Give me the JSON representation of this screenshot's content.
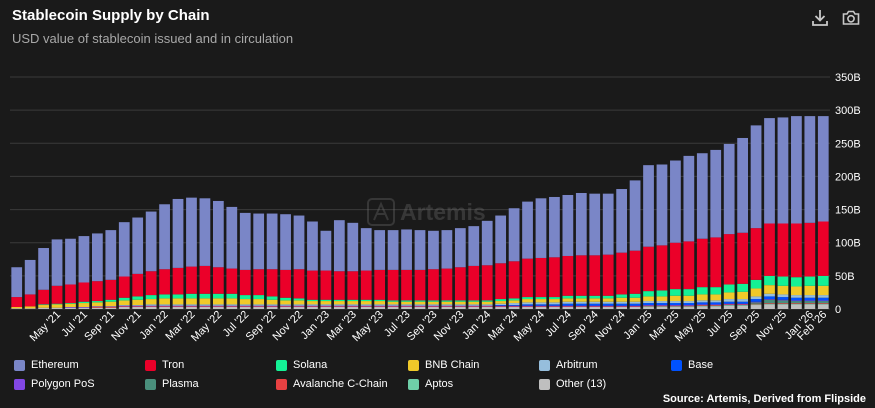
{
  "header": {
    "title": "Stablecoin Supply by Chain",
    "subtitle": "USD value of stablecoin issued and in circulation"
  },
  "toolbar": {
    "download_icon": "download-icon",
    "camera_icon": "camera-icon"
  },
  "source": "Source: Artemis, Derived from Flipside",
  "watermark": "Artemis",
  "colors": {
    "background": "#1a1a1a",
    "gridline": "#3a3a3a"
  },
  "chart_data": {
    "type": "bar",
    "stacked": true,
    "unit": "USD (billions)",
    "ylim": [
      0,
      350
    ],
    "yticks": [
      0,
      50,
      100,
      150,
      200,
      250,
      300,
      350
    ],
    "ytick_labels": [
      "0",
      "50B",
      "100B",
      "150B",
      "200B",
      "250B",
      "300B",
      "350B"
    ],
    "y_axis_position": "right",
    "grid": true,
    "legend_position": "bottom",
    "x_tick_labels": [
      "May '21",
      "Jul '21",
      "Sep '21",
      "Nov '21",
      "Jan '22",
      "Mar '22",
      "May '22",
      "Jul '22",
      "Sep '22",
      "Nov '22",
      "Jan '23",
      "Mar '23",
      "May '23",
      "Jul '23",
      "Sep '23",
      "Nov '23",
      "Jan '24",
      "Mar '24",
      "May '24",
      "Jul '24",
      "Sep '24",
      "Nov '24",
      "Jan '25",
      "Mar '25",
      "May '25",
      "Jul '25",
      "Sep '25",
      "Nov '25",
      "Jan '26",
      "Feb '26"
    ],
    "x_tick_indices": [
      3,
      5,
      7,
      9,
      11,
      13,
      15,
      17,
      19,
      21,
      23,
      25,
      27,
      29,
      31,
      33,
      35,
      37,
      39,
      41,
      43,
      45,
      47,
      49,
      51,
      53,
      55,
      57,
      59,
      60
    ],
    "categories": [
      "Feb '21",
      "Mar '21",
      "Apr '21",
      "May '21",
      "Jun '21",
      "Jul '21",
      "Aug '21",
      "Sep '21",
      "Oct '21",
      "Nov '21",
      "Dec '21",
      "Jan '22",
      "Feb '22",
      "Mar '22",
      "Apr '22",
      "May '22",
      "Jun '22",
      "Jul '22",
      "Aug '22",
      "Sep '22",
      "Oct '22",
      "Nov '22",
      "Dec '22",
      "Jan '23",
      "Feb '23",
      "Mar '23",
      "Apr '23",
      "May '23",
      "Jun '23",
      "Jul '23",
      "Aug '23",
      "Sep '23",
      "Oct '23",
      "Nov '23",
      "Dec '23",
      "Jan '24",
      "Feb '24",
      "Mar '24",
      "Apr '24",
      "May '24",
      "Jun '24",
      "Jul '24",
      "Aug '24",
      "Sep '24",
      "Oct '24",
      "Nov '24",
      "Dec '24",
      "Jan '25",
      "Feb '25",
      "Mar '25",
      "Apr '25",
      "May '25",
      "Jun '25",
      "Jul '25",
      "Aug '25",
      "Sep '25",
      "Oct '25",
      "Nov '25",
      "Dec '25",
      "Jan '26",
      "Feb '26"
    ],
    "series": [
      {
        "name": "Other (13)",
        "color": "#bfbfbf",
        "values": [
          1,
          1,
          2,
          2,
          2,
          2,
          2,
          2,
          3,
          3,
          3,
          3,
          3,
          3,
          3,
          3,
          3,
          3,
          3,
          3,
          3,
          3,
          3,
          3,
          3,
          3,
          3,
          3,
          3,
          3,
          3,
          3,
          3,
          3,
          3,
          3,
          3,
          3,
          3,
          3,
          3,
          3,
          3,
          3,
          3,
          3,
          3,
          3,
          3,
          3,
          3,
          4,
          4,
          5,
          5,
          6,
          7,
          7,
          7,
          7,
          7
        ]
      },
      {
        "name": "Aptos",
        "color": "#6fcfa8",
        "values": [
          0,
          0,
          0,
          0,
          0,
          0,
          0,
          0,
          0,
          0,
          0,
          0,
          0,
          0,
          0,
          0,
          0,
          0,
          0,
          0,
          0,
          0,
          0,
          0,
          0,
          0,
          0,
          0,
          0,
          0,
          0,
          0,
          0,
          0,
          0,
          0,
          0,
          0,
          0,
          0,
          0,
          0,
          0,
          0,
          0,
          0,
          0,
          1,
          1,
          1,
          1,
          1,
          1,
          1,
          1,
          1,
          1,
          1,
          1,
          1,
          1
        ]
      },
      {
        "name": "Avalanche C-Chain",
        "color": "#e84142",
        "values": [
          0,
          0,
          0,
          0,
          0,
          0,
          1,
          1,
          1,
          1,
          1,
          1,
          1,
          1,
          1,
          1,
          1,
          1,
          1,
          1,
          1,
          1,
          1,
          1,
          1,
          1,
          1,
          1,
          1,
          1,
          1,
          1,
          1,
          1,
          1,
          1,
          1,
          1,
          1,
          1,
          1,
          1,
          1,
          1,
          1,
          1,
          1,
          1,
          1,
          1,
          1,
          1,
          1,
          1,
          1,
          1,
          1,
          1,
          1,
          1,
          1
        ]
      },
      {
        "name": "Plasma",
        "color": "#4a8f7c",
        "values": [
          0,
          0,
          0,
          0,
          0,
          0,
          0,
          0,
          0,
          0,
          0,
          0,
          0,
          0,
          0,
          0,
          0,
          0,
          0,
          0,
          0,
          0,
          0,
          0,
          0,
          0,
          0,
          0,
          0,
          0,
          0,
          0,
          0,
          0,
          0,
          0,
          0,
          0,
          0,
          0,
          0,
          0,
          0,
          0,
          0,
          0,
          0,
          0,
          0,
          0,
          0,
          0,
          0,
          0,
          0,
          2,
          5,
          4,
          3,
          3,
          3
        ]
      },
      {
        "name": "Polygon PoS",
        "color": "#8247e5",
        "values": [
          0,
          0,
          0,
          0,
          1,
          1,
          1,
          1,
          1,
          1,
          1,
          1,
          1,
          1,
          1,
          1,
          1,
          1,
          1,
          1,
          1,
          1,
          1,
          1,
          1,
          1,
          1,
          1,
          1,
          1,
          1,
          1,
          1,
          1,
          1,
          1,
          1,
          1,
          1,
          1,
          1,
          1,
          1,
          1,
          1,
          1,
          1,
          1,
          1,
          1,
          1,
          1,
          1,
          1,
          1,
          1,
          1,
          1,
          1,
          1,
          1
        ]
      },
      {
        "name": "Base",
        "color": "#0052ff",
        "values": [
          0,
          0,
          0,
          0,
          0,
          0,
          0,
          0,
          0,
          0,
          0,
          0,
          0,
          0,
          0,
          0,
          0,
          0,
          0,
          0,
          0,
          0,
          0,
          0,
          0,
          0,
          0,
          0,
          0,
          0,
          0,
          0,
          0,
          0,
          0,
          0,
          1,
          1,
          2,
          2,
          2,
          3,
          3,
          3,
          3,
          3,
          3,
          3,
          3,
          3,
          3,
          3,
          3,
          3,
          3,
          4,
          4,
          4,
          4,
          4,
          4
        ]
      },
      {
        "name": "Arbitrum",
        "color": "#96bedc",
        "values": [
          0,
          0,
          0,
          0,
          0,
          0,
          0,
          0,
          1,
          1,
          2,
          2,
          2,
          2,
          2,
          2,
          2,
          2,
          2,
          2,
          2,
          2,
          2,
          2,
          2,
          2,
          2,
          2,
          2,
          2,
          2,
          2,
          2,
          2,
          2,
          2,
          2,
          3,
          3,
          3,
          3,
          3,
          3,
          3,
          3,
          3,
          3,
          3,
          3,
          3,
          3,
          3,
          3,
          4,
          4,
          4,
          4,
          4,
          4,
          4,
          4
        ]
      },
      {
        "name": "BNB Chain",
        "color": "#f0c929",
        "values": [
          2,
          3,
          4,
          5,
          5,
          6,
          6,
          7,
          7,
          8,
          8,
          9,
          9,
          9,
          9,
          9,
          9,
          8,
          8,
          7,
          6,
          6,
          5,
          5,
          5,
          5,
          5,
          5,
          4,
          4,
          4,
          4,
          4,
          4,
          4,
          4,
          4,
          4,
          5,
          5,
          5,
          5,
          5,
          5,
          5,
          6,
          6,
          7,
          7,
          8,
          8,
          9,
          9,
          10,
          11,
          12,
          13,
          13,
          13,
          14,
          14
        ]
      },
      {
        "name": "Solana",
        "color": "#14f195",
        "values": [
          0,
          0,
          1,
          1,
          1,
          2,
          2,
          3,
          4,
          5,
          6,
          6,
          6,
          7,
          7,
          7,
          7,
          6,
          6,
          5,
          4,
          3,
          2,
          2,
          2,
          2,
          2,
          2,
          2,
          2,
          2,
          2,
          2,
          2,
          2,
          2,
          3,
          3,
          3,
          3,
          3,
          4,
          4,
          4,
          4,
          5,
          6,
          8,
          9,
          10,
          10,
          11,
          11,
          12,
          12,
          13,
          14,
          14,
          14,
          14,
          15
        ]
      },
      {
        "name": "Tron",
        "color": "#eb0029",
        "values": [
          15,
          18,
          22,
          27,
          28,
          29,
          30,
          30,
          32,
          34,
          36,
          38,
          40,
          41,
          42,
          40,
          38,
          38,
          39,
          41,
          42,
          44,
          44,
          44,
          43,
          43,
          44,
          45,
          46,
          46,
          46,
          47,
          48,
          50,
          52,
          53,
          54,
          56,
          58,
          59,
          60,
          60,
          61,
          61,
          62,
          63,
          65,
          67,
          68,
          70,
          72,
          73,
          75,
          76,
          77,
          78,
          79,
          80,
          81,
          81,
          82
        ]
      },
      {
        "name": "Ethereum",
        "color": "#7a86c7",
        "values": [
          45,
          52,
          63,
          70,
          69,
          70,
          72,
          75,
          82,
          85,
          90,
          98,
          104,
          104,
          102,
          100,
          93,
          86,
          84,
          84,
          84,
          81,
          74,
          60,
          77,
          73,
          64,
          60,
          60,
          61,
          60,
          58,
          58,
          59,
          60,
          67,
          72,
          80,
          86,
          90,
          91,
          92,
          94,
          93,
          92,
          96,
          106,
          123,
          122,
          124,
          129,
          129,
          132,
          136,
          143,
          155,
          159,
          160,
          162,
          161,
          159
        ]
      }
    ]
  },
  "legend": [
    [
      "Ethereum",
      "Tron",
      "Solana",
      "BNB Chain",
      "Arbitrum",
      "Base"
    ],
    [
      "Polygon PoS",
      "Plasma",
      "Avalanche C-Chain",
      "Aptos",
      "Other (13)"
    ]
  ]
}
